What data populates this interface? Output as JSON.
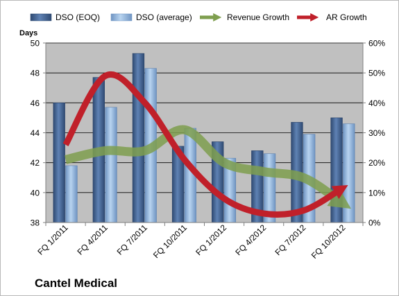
{
  "company": "Cantel Medical",
  "chart_data": {
    "type": "bar",
    "categories": [
      "FQ 1/2011",
      "FQ 4/2011",
      "FQ 7/2011",
      "FQ 10/2011",
      "FQ 1/2012",
      "FQ 4/2012",
      "FQ 7/2012",
      "FQ 10/2012"
    ],
    "series": [
      {
        "name": "DSO (EOQ)",
        "type": "bar",
        "axis": "left",
        "color": "#3f5f8f",
        "values": [
          46.0,
          47.7,
          49.3,
          43.1,
          43.4,
          42.8,
          44.7,
          45.0
        ]
      },
      {
        "name": "DSO (average)",
        "type": "bar",
        "axis": "left",
        "color": "#8fb4de",
        "values": [
          41.8,
          45.7,
          48.3,
          44.3,
          42.3,
          42.6,
          43.9,
          44.6
        ]
      },
      {
        "name": "Revenue Growth",
        "type": "line",
        "axis": "right",
        "color": "#7f9f4f",
        "values": [
          0.21,
          0.24,
          0.24,
          0.31,
          0.2,
          0.17,
          0.15,
          0.07
        ]
      },
      {
        "name": "AR Growth",
        "type": "line",
        "axis": "right",
        "color": "#c0202a",
        "values": [
          0.26,
          0.49,
          0.4,
          0.21,
          0.08,
          0.03,
          0.04,
          0.11
        ]
      }
    ],
    "ylabel": "Days",
    "ylim": [
      38,
      50
    ],
    "yticks": [
      "38",
      "40",
      "42",
      "44",
      "46",
      "48",
      "50"
    ],
    "y2lim": [
      0,
      0.6
    ],
    "y2ticks": [
      "0%",
      "10%",
      "20%",
      "30%",
      "40%",
      "50%",
      "60%"
    ],
    "legend_position": "top",
    "grid": true,
    "colors": {
      "plot_background": "#c0c0c0",
      "gridline": "#000000"
    }
  }
}
